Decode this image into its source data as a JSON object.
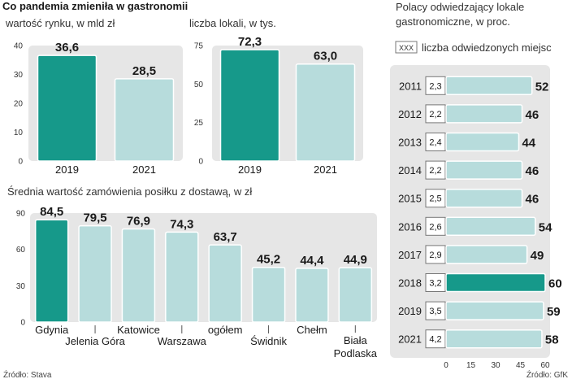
{
  "header": {
    "main_title": "Co pandemia zmieniła w gastronomii"
  },
  "colors": {
    "panel": "#e6e6e6",
    "teal": "#16998a",
    "light": "#b7dcdc",
    "grid": "#cccccc"
  },
  "chart_data": [
    {
      "id": "market",
      "type": "bar",
      "title": "wartość rynku, w mld zł",
      "categories": [
        "2019",
        "2021"
      ],
      "values": [
        36.6,
        28.5
      ],
      "value_labels": [
        "36,6",
        "28,5"
      ],
      "highlight": [
        true,
        false
      ],
      "ylim": [
        0,
        40
      ],
      "yticks": [
        "0",
        "10",
        "20",
        "30",
        "40"
      ]
    },
    {
      "id": "venues",
      "type": "bar",
      "title": "liczba lokali, w tys.",
      "categories": [
        "2019",
        "2021"
      ],
      "values": [
        72.3,
        63.0
      ],
      "value_labels": [
        "72,3",
        "63,0"
      ],
      "highlight": [
        true,
        false
      ],
      "ylim": [
        0,
        75
      ],
      "yticks": [
        "0",
        "25",
        "50",
        "75"
      ]
    },
    {
      "id": "order",
      "type": "bar",
      "title": "Średnia wartość zamówienia posiłku z dostawą, w zł",
      "categories": [
        "Gdynia",
        "Jelenia Góra",
        "Katowice",
        "Warszawa",
        "ogółem",
        "Świdnik",
        "Chełm",
        "Biała Podlaska"
      ],
      "category_lines": [
        [
          "Gdynia"
        ],
        [
          "Jelenia Góra"
        ],
        [
          "Katowice"
        ],
        [
          "Warszawa"
        ],
        [
          "ogółem"
        ],
        [
          "Świdnik"
        ],
        [
          "Chełm"
        ],
        [
          "Biała",
          "Podlaska"
        ]
      ],
      "values": [
        84.5,
        79.5,
        76.9,
        74.3,
        63.7,
        45.2,
        44.4,
        44.9
      ],
      "value_labels": [
        "84,5",
        "79,5",
        "76,9",
        "74,3",
        "63,7",
        "45,2",
        "44,4",
        "44,9"
      ],
      "highlight": [
        true,
        false,
        false,
        false,
        false,
        false,
        false,
        false
      ],
      "ylim": [
        0,
        90
      ],
      "yticks": [
        "0",
        "30",
        "60",
        "90"
      ],
      "source": "Źródło: Stava"
    },
    {
      "id": "visitors",
      "type": "bar",
      "orientation": "horizontal",
      "title_lines": [
        "Polacy odwiedzający lokale",
        "gastronomiczne, w proc."
      ],
      "legend_box": "XXX",
      "legend_text": "liczba odwiedzonych miejsc",
      "categories": [
        "2011",
        "2012",
        "2013",
        "2014",
        "2015",
        "2016",
        "2017",
        "2018",
        "2019",
        "2021"
      ],
      "values": [
        52,
        46,
        44,
        46,
        46,
        54,
        49,
        60,
        59,
        58
      ],
      "value_labels": [
        "52",
        "46",
        "44",
        "46",
        "46",
        "54",
        "49",
        "60",
        "59",
        "58"
      ],
      "counts": [
        "2,3",
        "2,2",
        "2,4",
        "2,2",
        "2,5",
        "2,6",
        "2,9",
        "3,2",
        "3,5",
        "4,2"
      ],
      "highlight": [
        false,
        false,
        false,
        false,
        false,
        false,
        false,
        true,
        false,
        false
      ],
      "xlim": [
        0,
        60
      ],
      "xticks": [
        "0",
        "15",
        "30",
        "45",
        "60"
      ],
      "source": "Źródło: GfK"
    }
  ]
}
